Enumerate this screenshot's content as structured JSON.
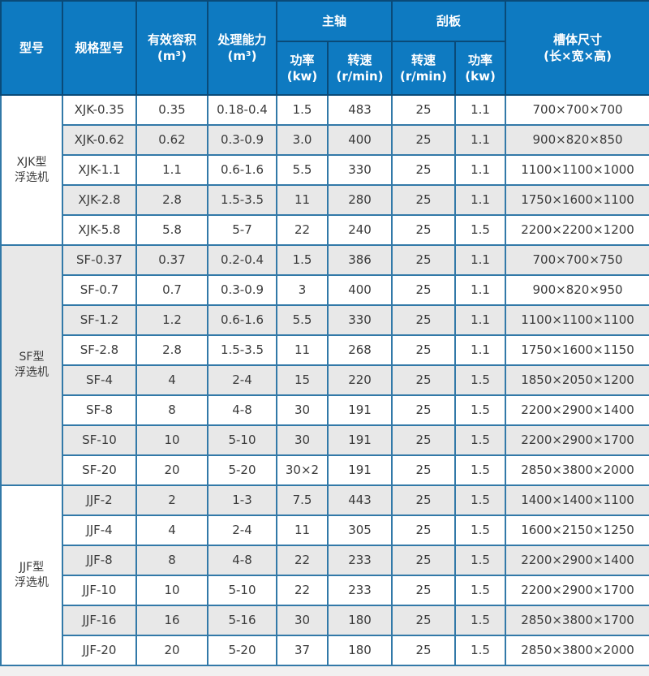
{
  "colors": {
    "header_bg": "#0e7ac1",
    "header_border": "#0a4a78",
    "body_border": "#3279a8",
    "stripe_gray": "#e8e8e8",
    "stripe_white": "#ffffff",
    "body_text": "#3b3b3b",
    "header_text": "#ffffff",
    "page_bg": "#f1f0f0"
  },
  "table": {
    "header": {
      "model_type": "型号",
      "spec_model": "规格型号",
      "effective_volume": "有效容积\n(m³)",
      "capacity": "处理能力\n(m³)",
      "main_shaft_group": "主轴",
      "scraper_group": "刮板",
      "main_shaft_power": "功率\n(kw)",
      "main_shaft_speed": "转速\n(r/min)",
      "scraper_speed": "转速\n(r/min)",
      "scraper_power": "功率\n(kw)",
      "tank_size": "槽体尺寸\n(长×宽×高)"
    },
    "groups": [
      {
        "label": "XJK型\n浮选机",
        "rows": [
          [
            "XJK-0.35",
            "0.35",
            "0.18-0.4",
            "1.5",
            "483",
            "25",
            "1.1",
            "700×700×700"
          ],
          [
            "XJK-0.62",
            "0.62",
            "0.3-0.9",
            "3.0",
            "400",
            "25",
            "1.1",
            "900×820×850"
          ],
          [
            "XJK-1.1",
            "1.1",
            "0.6-1.6",
            "5.5",
            "330",
            "25",
            "1.1",
            "1100×1100×1000"
          ],
          [
            "XJK-2.8",
            "2.8",
            "1.5-3.5",
            "11",
            "280",
            "25",
            "1.1",
            "1750×1600×1100"
          ],
          [
            "XJK-5.8",
            "5.8",
            "5-7",
            "22",
            "240",
            "25",
            "1.5",
            "2200×2200×1200"
          ]
        ]
      },
      {
        "label": "SF型\n浮选机",
        "rows": [
          [
            "SF-0.37",
            "0.37",
            "0.2-0.4",
            "1.5",
            "386",
            "25",
            "1.1",
            "700×700×750"
          ],
          [
            "SF-0.7",
            "0.7",
            "0.3-0.9",
            "3",
            "400",
            "25",
            "1.1",
            "900×820×950"
          ],
          [
            "SF-1.2",
            "1.2",
            "0.6-1.6",
            "5.5",
            "330",
            "25",
            "1.1",
            "1100×1100×1100"
          ],
          [
            "SF-2.8",
            "2.8",
            "1.5-3.5",
            "11",
            "268",
            "25",
            "1.1",
            "1750×1600×1150"
          ],
          [
            "SF-4",
            "4",
            "2-4",
            "15",
            "220",
            "25",
            "1.5",
            "1850×2050×1200"
          ],
          [
            "SF-8",
            "8",
            "4-8",
            "30",
            "191",
            "25",
            "1.5",
            "2200×2900×1400"
          ],
          [
            "SF-10",
            "10",
            "5-10",
            "30",
            "191",
            "25",
            "1.5",
            "2200×2900×1700"
          ],
          [
            "SF-20",
            "20",
            "5-20",
            "30×2",
            "191",
            "25",
            "1.5",
            "2850×3800×2000"
          ]
        ]
      },
      {
        "label": "JJF型\n浮选机",
        "rows": [
          [
            "JJF-2",
            "2",
            "1-3",
            "7.5",
            "443",
            "25",
            "1.5",
            "1400×1400×1100"
          ],
          [
            "JJF-4",
            "4",
            "2-4",
            "11",
            "305",
            "25",
            "1.5",
            "1600×2150×1250"
          ],
          [
            "JJF-8",
            "8",
            "4-8",
            "22",
            "233",
            "25",
            "1.5",
            "2200×2900×1400"
          ],
          [
            "JJF-10",
            "10",
            "5-10",
            "22",
            "233",
            "25",
            "1.5",
            "2200×2900×1700"
          ],
          [
            "JJF-16",
            "16",
            "5-16",
            "30",
            "180",
            "25",
            "1.5",
            "2850×3800×1700"
          ],
          [
            "JJF-20",
            "20",
            "5-20",
            "37",
            "180",
            "25",
            "1.5",
            "2850×3800×2000"
          ]
        ]
      }
    ],
    "column_keys": [
      "spec-model",
      "effective-volume",
      "capacity",
      "main-shaft-power",
      "main-shaft-speed",
      "scraper-speed",
      "scraper-power",
      "tank-size"
    ]
  }
}
